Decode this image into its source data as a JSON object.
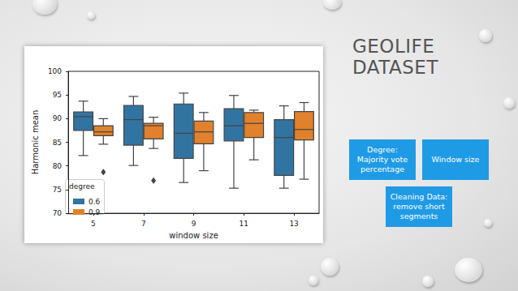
{
  "slide": {
    "title": "GEOLIFE DATASET",
    "boxes": [
      "Degree: Majority vote percentage",
      "Window size",
      "Cleaning Data: remove short segments"
    ]
  },
  "chart_data": {
    "type": "boxplot",
    "x_label": "window size",
    "y_label": "Harmonic mean",
    "categories": [
      "5",
      "7",
      "9",
      "11",
      "13"
    ],
    "series": [
      {
        "name": "0.6",
        "color": "#3274a1",
        "values": [
          [
            82.2,
            87.5,
            90.4,
            91.4,
            93.7
          ],
          [
            80.1,
            84.4,
            89.8,
            92.8,
            94.7
          ],
          [
            76.5,
            81.6,
            86.9,
            93.1,
            95.4
          ],
          [
            75.3,
            85.3,
            88.5,
            92.1,
            94.9
          ],
          [
            75.3,
            78.0,
            86.0,
            89.8,
            92.7
          ]
        ],
        "outliers": [
          [],
          [],
          [],
          [],
          []
        ]
      },
      {
        "name": "0.9",
        "color": "#e1812c",
        "values": [
          [
            84.6,
            86.4,
            87.2,
            88.5,
            90.0
          ],
          [
            83.7,
            85.7,
            88.5,
            89.0,
            90.3
          ],
          [
            79.0,
            84.7,
            87.2,
            89.5,
            91.3
          ],
          [
            81.3,
            86.0,
            89.0,
            91.3,
            91.8
          ],
          [
            77.2,
            85.5,
            87.7,
            91.5,
            93.4
          ]
        ],
        "outliers": [
          [
            78.7
          ],
          [
            76.9
          ],
          [],
          [],
          []
        ]
      }
    ],
    "ylim": [
      70,
      100
    ],
    "yticks": [
      70,
      75,
      80,
      85,
      90,
      95,
      100
    ],
    "grid": false,
    "legend": "lower left",
    "legend_title": "degree",
    "marker": "diamond"
  }
}
